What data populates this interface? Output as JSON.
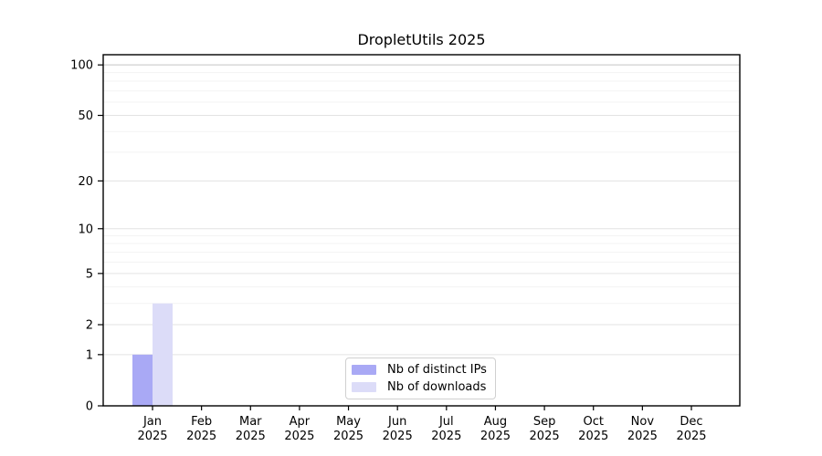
{
  "chart_data": {
    "type": "bar",
    "title": "DropletUtils 2025",
    "categories": [
      "Jan",
      "Feb",
      "Mar",
      "Apr",
      "May",
      "Jun",
      "Jul",
      "Aug",
      "Sep",
      "Oct",
      "Nov",
      "Dec"
    ],
    "category_year": "2025",
    "series": [
      {
        "name": "Nb of distinct IPs",
        "color": "#a9a9f5",
        "values": [
          1,
          0,
          0,
          0,
          0,
          0,
          0,
          0,
          0,
          0,
          0,
          0
        ]
      },
      {
        "name": "Nb of downloads",
        "color": "#dcdcf8",
        "values": [
          3,
          0,
          0,
          0,
          0,
          0,
          0,
          0,
          0,
          0,
          0,
          0
        ]
      }
    ],
    "xlabel": "",
    "ylabel": "",
    "y_axis": {
      "scale": "log1p",
      "tick_labels": [
        "0",
        "1",
        "2",
        "5",
        "10",
        "20",
        "50",
        "100"
      ],
      "tick_values": [
        0,
        1,
        2,
        5,
        10,
        20,
        50,
        100
      ],
      "minor_gridline_values": [
        3,
        4,
        6,
        7,
        8,
        9,
        30,
        40,
        60,
        70,
        80,
        90
      ],
      "ylim": [
        0,
        115
      ]
    },
    "legend": {
      "position": "lower center",
      "entries": [
        "Nb of distinct IPs",
        "Nb of downloads"
      ]
    },
    "grid": "horizontal"
  },
  "colors": {
    "background": "#ffffff",
    "bar_distinct_ips": "#a9a9f5",
    "bar_downloads": "#dcdcf8",
    "axis_frame": "#000000",
    "major_gridline": "#e3e3e3",
    "minor_gridline": "#f3f3f3",
    "top_gridline": "#c4c4c4",
    "tick_text": "#000000",
    "legend_border": "#d0d0d0"
  }
}
